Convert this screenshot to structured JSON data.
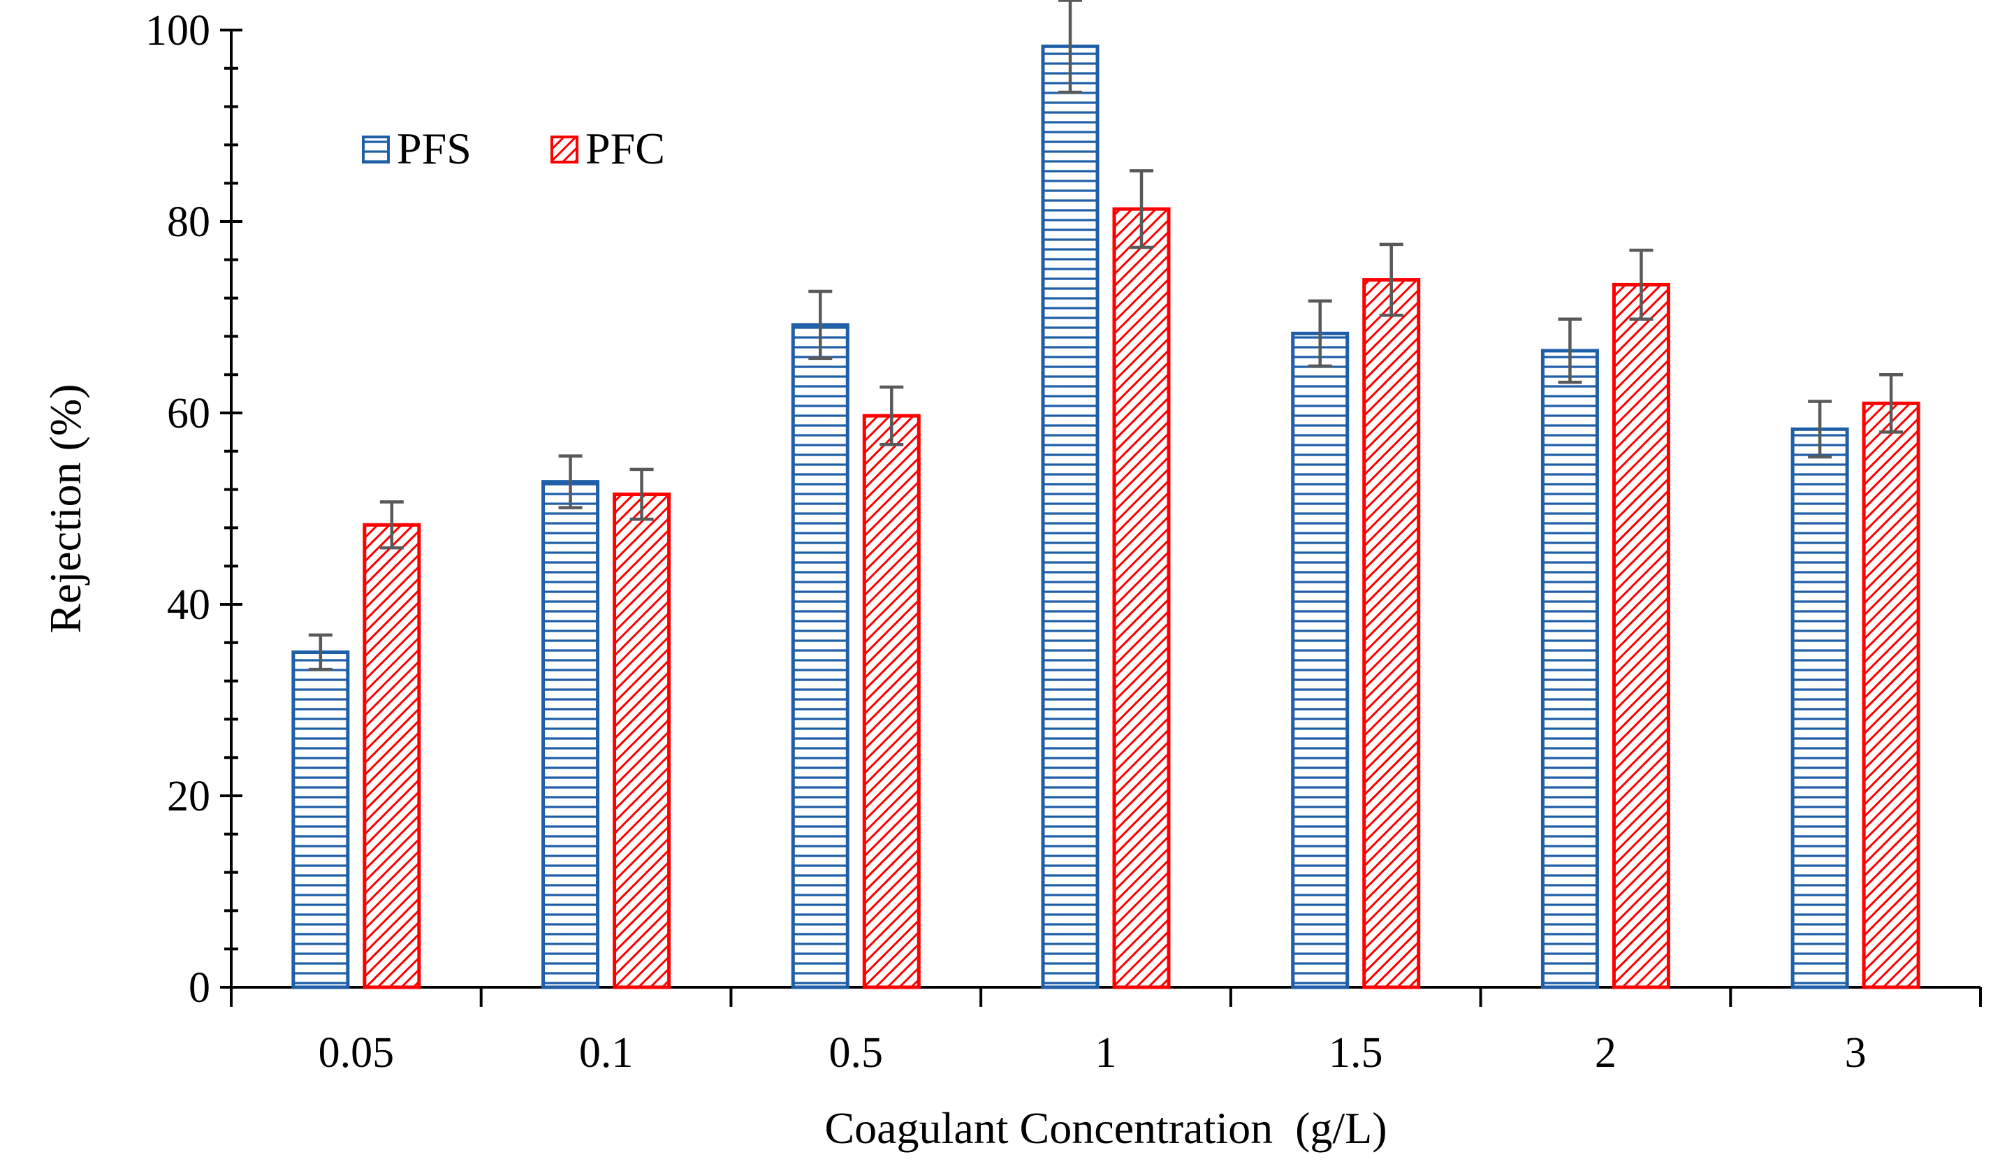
{
  "chart_data": {
    "type": "bar",
    "title": "",
    "xlabel": "Coagulant Concentration  (g/L)",
    "ylabel": "Rejection (%)",
    "ylim": [
      0,
      100
    ],
    "yticks": [
      0,
      20,
      40,
      60,
      80,
      100
    ],
    "ytick_labels": [
      "0",
      "20",
      "40",
      "60",
      "80",
      "100"
    ],
    "categories": [
      "0.05",
      "0.1",
      "0.5",
      "1",
      "1.5",
      "2",
      "3"
    ],
    "legend_position": "top-left",
    "series": [
      {
        "name": "PFS",
        "color": "#1F5FA8",
        "pattern": "horizontal-lines",
        "values": [
          35.0,
          52.8,
          69.2,
          98.3,
          68.3,
          66.5,
          58.3
        ],
        "errors": [
          1.8,
          2.7,
          3.5,
          4.8,
          3.4,
          3.3,
          2.9
        ]
      },
      {
        "name": "PFC",
        "color": "#FF0000",
        "pattern": "diagonal-hatch",
        "values": [
          48.3,
          51.5,
          59.7,
          81.3,
          73.9,
          73.4,
          61.0
        ],
        "errors": [
          2.4,
          2.6,
          3.0,
          4.0,
          3.7,
          3.6,
          3.0
        ]
      }
    ],
    "error_bar_color": "#595959"
  }
}
